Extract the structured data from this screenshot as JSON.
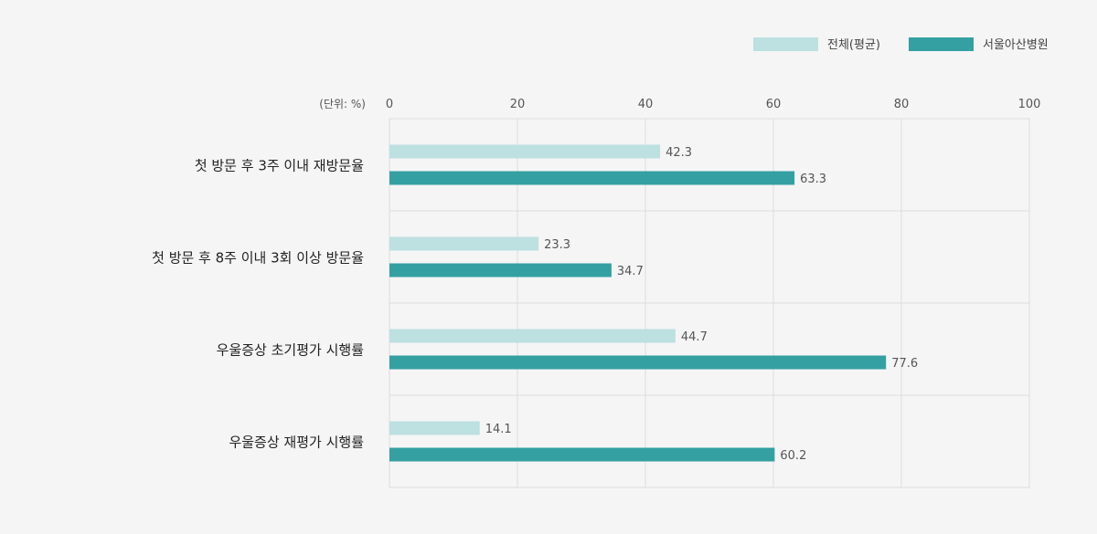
{
  "chart_data": {
    "type": "bar",
    "orientation": "horizontal",
    "unit_label": "(단위: %)",
    "xlim": [
      0,
      100
    ],
    "x_ticks": [
      "0",
      "20",
      "40",
      "60",
      "80",
      "100"
    ],
    "grid": true,
    "legend_position": "top-right",
    "categories": [
      "첫 방문 후 3주 이내 재방문율",
      "첫 방문 후 8주 이내 3회 이상 방문율",
      "우울증상 초기평가 시행률",
      "우울증상 재평가 시행률"
    ],
    "series": [
      {
        "name": "전체(평균)",
        "color": "#bde0e1",
        "values": [
          42.3,
          23.3,
          44.7,
          14.1
        ]
      },
      {
        "name": "서울아산병원",
        "color": "#34a0a2",
        "values": [
          63.3,
          34.7,
          77.6,
          60.2
        ]
      }
    ]
  }
}
